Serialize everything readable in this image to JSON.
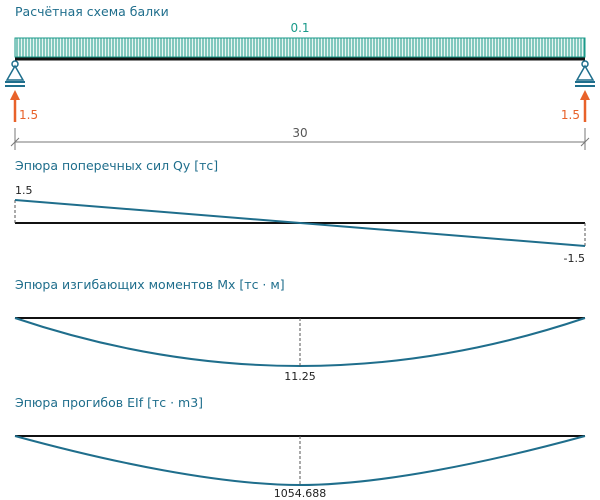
{
  "titles": {
    "scheme": "Расчётная схема балки",
    "shear": "Эпюра поперечных сил Qy [тс]",
    "moment": "Эпюра изгибающих моментов Mx [тс · м]",
    "deflection": "Эпюра прогибов EIf [тс · m3]"
  },
  "scheme": {
    "span": 30,
    "span_label": "30",
    "load": 0.1,
    "load_label": "0.1",
    "reaction_left": "1.5",
    "reaction_right": "1.5"
  },
  "shear": {
    "values": [
      1.5,
      -1.5
    ],
    "label_start": "1.5",
    "label_end": "-1.5"
  },
  "moment": {
    "max": 11.25,
    "label_max": "11.25"
  },
  "deflection": {
    "max": 1054.688,
    "label_max": "1054.688"
  },
  "colors": {
    "title": "#1f6e8c",
    "load": "#1a9a8a",
    "reaction": "#e8622a",
    "diagram": "#1f6e8c",
    "beam": "#111111"
  }
}
